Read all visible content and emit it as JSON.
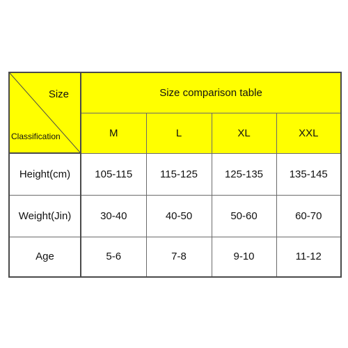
{
  "table": {
    "title": "Size comparison table",
    "corner": {
      "top_label": "Size",
      "bottom_label": "Classification"
    },
    "sizes": [
      "M",
      "L",
      "XL",
      "XXL"
    ],
    "rows": [
      {
        "label": "Height(cm)",
        "values": [
          "105-115",
          "115-125",
          "125-135",
          "135-145"
        ]
      },
      {
        "label": "Weight(Jin)",
        "values": [
          "30-40",
          "40-50",
          "50-60",
          "60-70"
        ]
      },
      {
        "label": "Age",
        "values": [
          "5-6",
          "7-8",
          "9-10",
          "11-12"
        ]
      }
    ],
    "colors": {
      "header_fill": "#ffff00",
      "body_fill": "#ffffff",
      "border": "#4a4a4a"
    }
  }
}
